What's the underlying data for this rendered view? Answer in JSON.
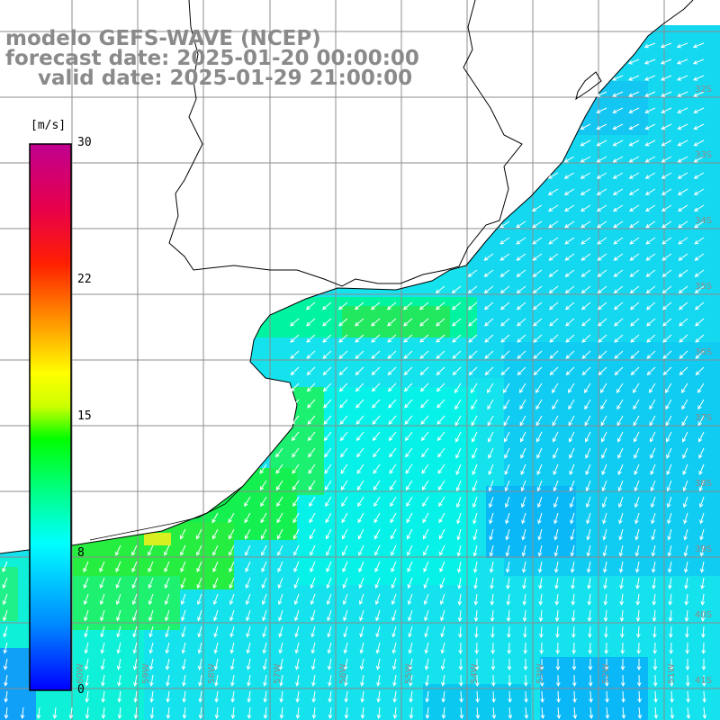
{
  "header": {
    "model": "modelo GEFS-WAVE (NCEP)",
    "forecast": "forecast date: 2025-01-20 00:00:00",
    "valid": "valid date: 2025-01-29 21:00:00"
  },
  "colorbar": {
    "unit": "[m/s]",
    "min": 0,
    "max": 30,
    "ticks": [
      "30",
      "22",
      "15",
      "8",
      "0"
    ],
    "tick_values": [
      30,
      22,
      15,
      8,
      0
    ],
    "colors": [
      "#0000ff",
      "#0090ff",
      "#00ffff",
      "#00ff60",
      "#00ff00",
      "#ffff00",
      "#ff8000",
      "#ff0000",
      "#d00080",
      "#c00090"
    ]
  },
  "map": {
    "land_color": "#ffffff",
    "coastline_color": "#000000",
    "grid_color": "#8c8c8c",
    "arrow_color": "#ffffff",
    "lat_labels": [
      "32S",
      "33S",
      "34S",
      "35S",
      "36S",
      "37S",
      "38S",
      "39S",
      "40S",
      "41S"
    ],
    "lon_labels": [
      "60W",
      "59W",
      "58W",
      "57W",
      "56W",
      "55W",
      "54W",
      "53W",
      "52W",
      "51W"
    ]
  }
}
